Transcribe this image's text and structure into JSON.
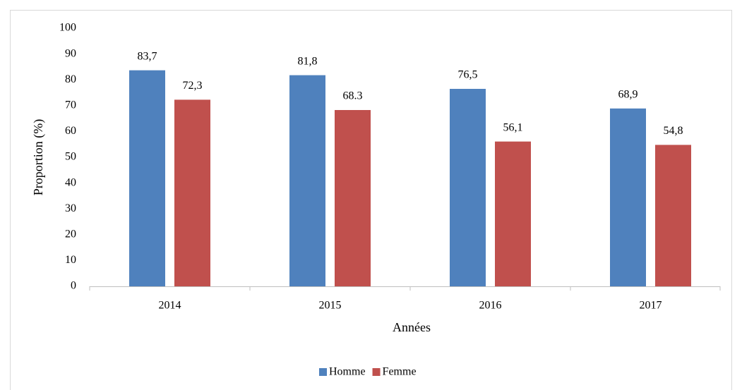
{
  "chart_data": {
    "type": "bar",
    "ylabel": "Proportion (%)",
    "xlabel": "Années",
    "categories": [
      "2014",
      "2015",
      "2016",
      "2017"
    ],
    "series": [
      {
        "name": "Homme",
        "color": "#4f81bd",
        "values": [
          83.7,
          81.8,
          76.5,
          68.9
        ],
        "value_labels": [
          "83,7",
          "81,8",
          "76,5",
          "68,9"
        ]
      },
      {
        "name": "Femme",
        "color": "#c0504d",
        "values": [
          72.3,
          68.3,
          56.1,
          54.8
        ],
        "value_labels": [
          "72,3",
          "68.3",
          "56,1",
          "54,8"
        ]
      }
    ],
    "ylim": [
      0,
      100
    ],
    "yticks": [
      0,
      10,
      20,
      30,
      40,
      50,
      60,
      70,
      80,
      90,
      100
    ],
    "grid": false,
    "legend": "bottom"
  }
}
